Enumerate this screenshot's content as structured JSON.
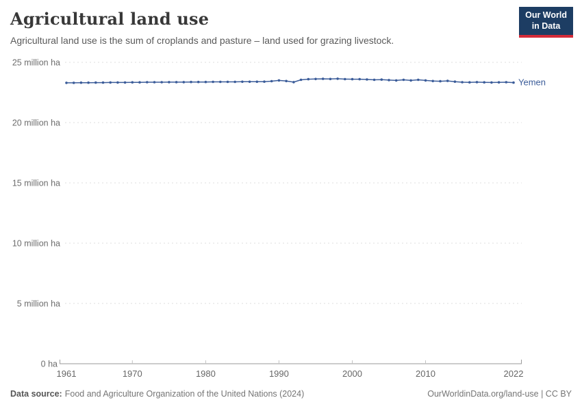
{
  "header": {
    "title": "Agricultural land use",
    "subtitle": "Agricultural land use is the sum of croplands and pasture – land used for grazing livestock."
  },
  "logo": {
    "line1": "Our World",
    "line2": "in Data",
    "bg": "#1d3d63",
    "accent": "#d42b38"
  },
  "chart_data": {
    "type": "line",
    "title": "Agricultural land use",
    "unit": "million ha",
    "grid": "horizontal-dashed",
    "legend_position": "end-of-line-label",
    "ylim": [
      0,
      25
    ],
    "y_ticks": [
      {
        "value": 25,
        "label": "25 million ha"
      },
      {
        "value": 20,
        "label": "20 million ha"
      },
      {
        "value": 15,
        "label": "15 million ha"
      },
      {
        "value": 10,
        "label": "10 million ha"
      },
      {
        "value": 5,
        "label": "5 million ha"
      },
      {
        "value": 0,
        "label": "0 ha"
      }
    ],
    "x_ticks": [
      1961,
      1970,
      1980,
      1990,
      2000,
      2010,
      2022
    ],
    "x": [
      1961,
      1962,
      1963,
      1964,
      1965,
      1966,
      1967,
      1968,
      1969,
      1970,
      1971,
      1972,
      1973,
      1974,
      1975,
      1976,
      1977,
      1978,
      1979,
      1980,
      1981,
      1982,
      1983,
      1984,
      1985,
      1986,
      1987,
      1988,
      1989,
      1990,
      1991,
      1992,
      1993,
      1994,
      1995,
      1996,
      1997,
      1998,
      1999,
      2000,
      2001,
      2002,
      2003,
      2004,
      2005,
      2006,
      2007,
      2008,
      2009,
      2010,
      2011,
      2012,
      2013,
      2014,
      2015,
      2016,
      2017,
      2018,
      2019,
      2020,
      2021,
      2022
    ],
    "series": [
      {
        "name": "Yemen",
        "color": "#3b5c99",
        "values": [
          23.3,
          23.3,
          23.31,
          23.31,
          23.32,
          23.32,
          23.33,
          23.33,
          23.33,
          23.34,
          23.34,
          23.35,
          23.35,
          23.35,
          23.36,
          23.36,
          23.36,
          23.37,
          23.37,
          23.37,
          23.38,
          23.38,
          23.38,
          23.38,
          23.39,
          23.39,
          23.39,
          23.4,
          23.44,
          23.5,
          23.45,
          23.36,
          23.55,
          23.6,
          23.62,
          23.63,
          23.62,
          23.64,
          23.61,
          23.6,
          23.6,
          23.58,
          23.55,
          23.57,
          23.53,
          23.5,
          23.55,
          23.5,
          23.55,
          23.5,
          23.45,
          23.43,
          23.46,
          23.4,
          23.35,
          23.34,
          23.36,
          23.34,
          23.33,
          23.34,
          23.35,
          23.32
        ]
      }
    ]
  },
  "footer": {
    "datasource_label": "Data source:",
    "datasource_text": "Food and Agriculture Organization of the United Nations (2024)",
    "attribution": "OurWorldinData.org/land-use | CC BY"
  }
}
